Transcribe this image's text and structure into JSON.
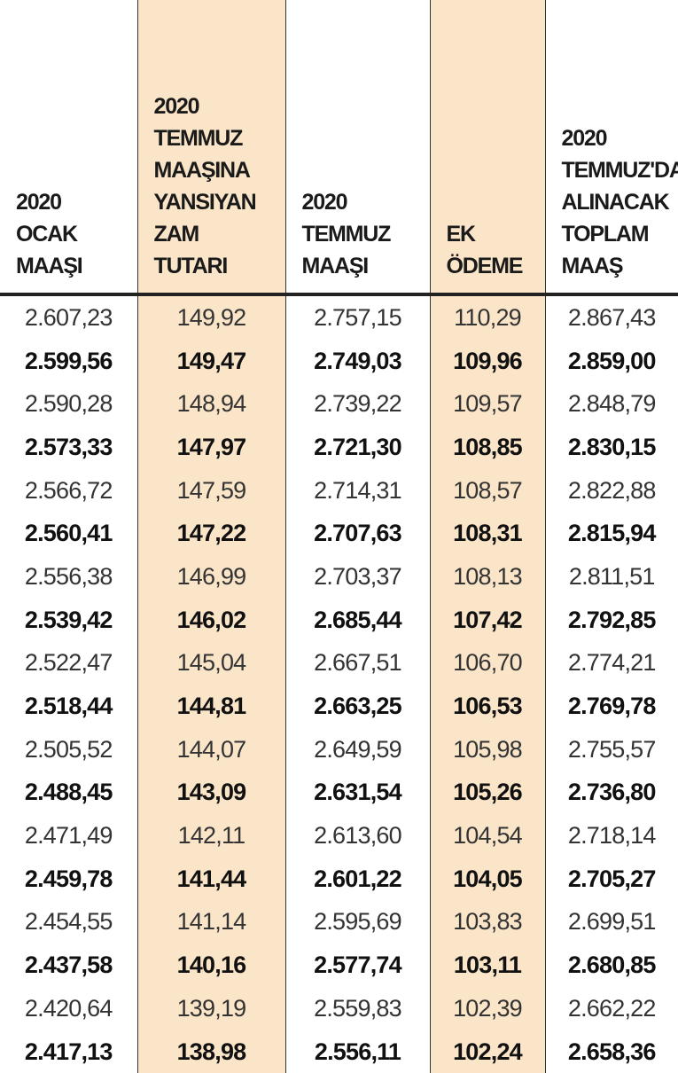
{
  "table": {
    "headers": [
      [
        "2020",
        "OCAK",
        "MAAŞI"
      ],
      [
        "2020",
        "TEMMUZ",
        "MAAŞINA",
        "YANSIYAN",
        "ZAM",
        "TUTARI"
      ],
      [
        "2020",
        "TEMMUZ",
        "MAAŞI"
      ],
      [
        "EK",
        "ÖDEME"
      ],
      [
        "2020",
        "TEMMUZ'DA",
        "ALINACAK",
        "TOPLAM",
        "MAAŞ"
      ]
    ],
    "rows": [
      [
        "2.607,23",
        "149,92",
        "2.757,15",
        "110,29",
        "2.867,43"
      ],
      [
        "2.599,56",
        "149,47",
        "2.749,03",
        "109,96",
        "2.859,00"
      ],
      [
        "2.590,28",
        "148,94",
        "2.739,22",
        "109,57",
        "2.848,79"
      ],
      [
        "2.573,33",
        "147,97",
        "2.721,30",
        "108,85",
        "2.830,15"
      ],
      [
        "2.566,72",
        "147,59",
        "2.714,31",
        "108,57",
        "2.822,88"
      ],
      [
        "2.560,41",
        "147,22",
        "2.707,63",
        "108,31",
        "2.815,94"
      ],
      [
        "2.556,38",
        "146,99",
        "2.703,37",
        "108,13",
        "2.811,51"
      ],
      [
        "2.539,42",
        "146,02",
        "2.685,44",
        "107,42",
        "2.792,85"
      ],
      [
        "2.522,47",
        "145,04",
        "2.667,51",
        "106,70",
        "2.774,21"
      ],
      [
        "2.518,44",
        "144,81",
        "2.663,25",
        "106,53",
        "2.769,78"
      ],
      [
        "2.505,52",
        "144,07",
        "2.649,59",
        "105,98",
        "2.755,57"
      ],
      [
        "2.488,45",
        "143,09",
        "2.631,54",
        "105,26",
        "2.736,80"
      ],
      [
        "2.471,49",
        "142,11",
        "2.613,60",
        "104,54",
        "2.718,14"
      ],
      [
        "2.459,78",
        "141,44",
        "2.601,22",
        "104,05",
        "2.705,27"
      ],
      [
        "2.454,55",
        "141,14",
        "2.595,69",
        "103,83",
        "2.699,51"
      ],
      [
        "2.437,58",
        "140,16",
        "2.577,74",
        "103,11",
        "2.680,85"
      ],
      [
        "2.420,64",
        "139,19",
        "2.559,83",
        "102,39",
        "2.662,22"
      ],
      [
        "2.417,13",
        "138,98",
        "2.556,11",
        "102,24",
        "2.658,36"
      ]
    ]
  }
}
